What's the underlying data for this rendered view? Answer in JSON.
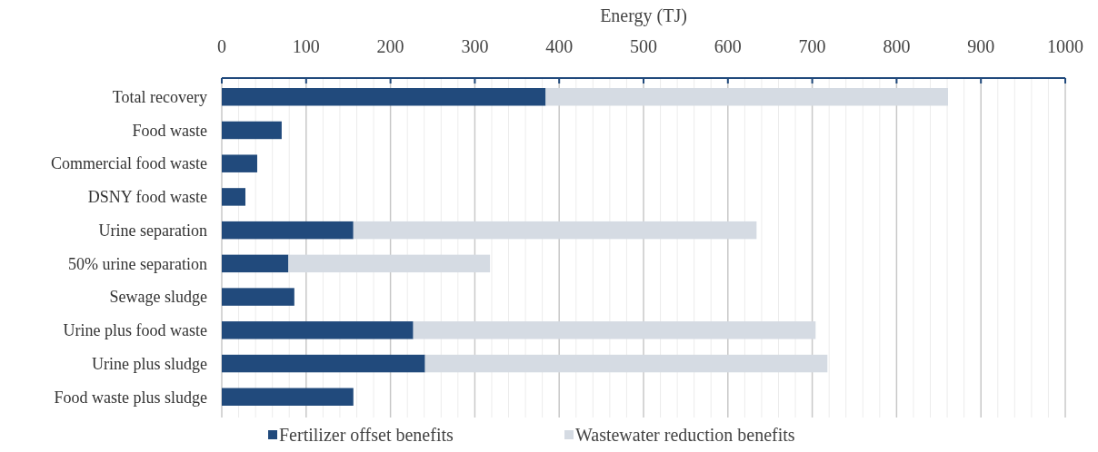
{
  "chart_data": {
    "type": "bar",
    "orientation": "horizontal",
    "stacked": true,
    "xlabel": "Energy (TJ)",
    "categories": [
      "Total recovery",
      "Food waste",
      "Commercial food waste",
      "DSNY food waste",
      "Urine separation",
      "50% urine separation",
      "Sewage sludge",
      "Urine plus food waste",
      "Urine plus sludge",
      "Food waste plus sludge"
    ],
    "series": [
      {
        "name": "Fertilizer offset benefits",
        "color": "#214a7c",
        "values": [
          384,
          71,
          42,
          28,
          156,
          79,
          86,
          227,
          241,
          156
        ]
      },
      {
        "name": "Wastewater reduction benefits",
        "color": "#d5dbe3",
        "values": [
          477,
          null,
          null,
          null,
          478,
          239,
          null,
          477,
          477,
          null
        ]
      }
    ],
    "xlim": [
      0,
      1000
    ],
    "xticks": [
      0,
      {
        "value": 20,
        "label": null
      },
      {
        "value": 40,
        "label": null
      },
      {
        "value": 60,
        "label": null
      },
      {
        "value": 80,
        "label": null
      },
      100,
      {
        "value": 120,
        "label": null
      },
      {
        "value": 140,
        "label": null
      },
      {
        "value": 160,
        "label": null
      },
      {
        "value": 180,
        "label": null
      },
      200,
      {
        "value": 220,
        "label": null
      },
      {
        "value": 240,
        "label": null
      },
      {
        "value": 260,
        "label": null
      },
      {
        "value": 280,
        "label": null
      },
      300,
      {
        "value": 320,
        "label": null
      },
      {
        "value": 340,
        "label": null
      },
      {
        "value": 360,
        "label": null
      },
      {
        "value": 380,
        "label": null
      },
      400,
      {
        "value": 420,
        "label": null
      },
      {
        "value": 440,
        "label": null
      },
      {
        "value": 460,
        "label": null
      },
      {
        "value": 480,
        "label": null
      },
      500,
      {
        "value": 520,
        "label": null
      },
      {
        "value": 540,
        "label": null
      },
      {
        "value": 560,
        "label": null
      },
      {
        "value": 580,
        "label": null
      },
      600,
      {
        "value": 620,
        "label": null
      },
      {
        "value": 640,
        "label": null
      },
      {
        "value": 660,
        "label": null
      },
      {
        "value": 680,
        "label": null
      },
      700,
      {
        "value": 720,
        "label": null
      },
      {
        "value": 740,
        "label": null
      },
      {
        "value": 760,
        "label": null
      },
      {
        "value": 780,
        "label": null
      },
      800,
      {
        "value": 820,
        "label": null
      },
      {
        "value": 840,
        "label": null
      },
      {
        "value": 860,
        "label": null
      },
      {
        "value": 880,
        "label": null
      },
      900,
      {
        "value": 920,
        "label": null
      },
      {
        "value": 940,
        "label": null
      },
      {
        "value": 960,
        "label": null
      },
      {
        "value": 980,
        "label": null
      },
      1000
    ],
    "grid": "x",
    "legend": "bottom"
  }
}
